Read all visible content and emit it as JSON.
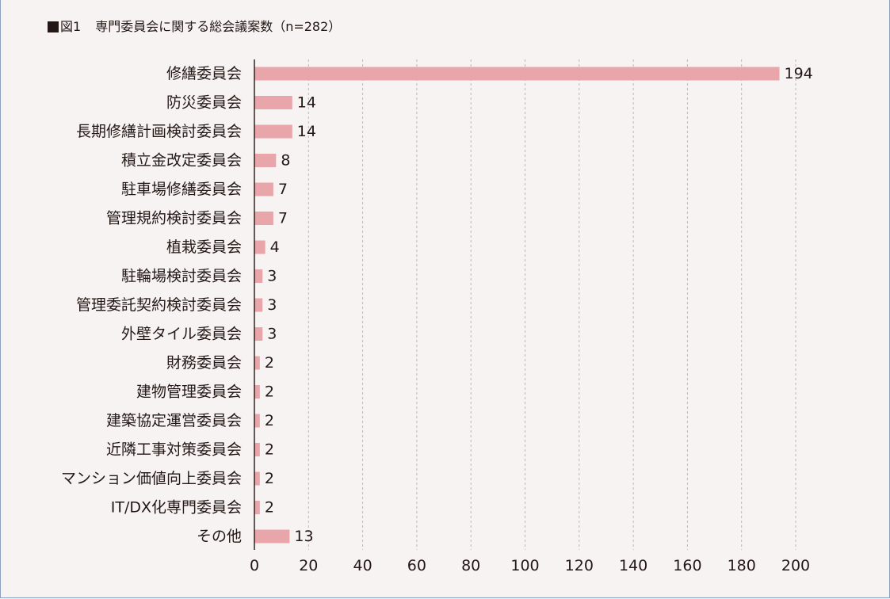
{
  "figure": {
    "square_glyph": "■",
    "label": "図1",
    "title": "専門委員会に関する総会議案数（n=282）"
  },
  "colors": {
    "background": "#f7f3f2",
    "bar": "#e8a6ab",
    "gridline": "#b8b8b8",
    "axis": "#231815",
    "text": "#231815",
    "frame": "#8aa0bf"
  },
  "chart_data": {
    "type": "bar",
    "orientation": "horizontal",
    "title": "専門委員会に関する総会議案数（n=282）",
    "xlabel": "",
    "ylabel": "",
    "xlim": [
      0,
      200
    ],
    "xticks": [
      0,
      20,
      40,
      60,
      80,
      100,
      120,
      140,
      160,
      180,
      200
    ],
    "grid": "vertical-dashed",
    "legend": "none",
    "categories": [
      "修繕委員会",
      "防災委員会",
      "長期修繕計画検討委員会",
      "積立金改定委員会",
      "駐車場修繕委員会",
      "管理規約検討委員会",
      "植栽委員会",
      "駐輪場検討委員会",
      "管理委託契約検討委員会",
      "外壁タイル委員会",
      "財務委員会",
      "建物管理委員会",
      "建築協定運営委員会",
      "近隣工事対策委員会",
      "マンション価値向上委員会",
      "IT/DX化専門委員会",
      "その他"
    ],
    "values": [
      194,
      14,
      14,
      8,
      7,
      7,
      4,
      3,
      3,
      3,
      2,
      2,
      2,
      2,
      2,
      2,
      13
    ]
  }
}
